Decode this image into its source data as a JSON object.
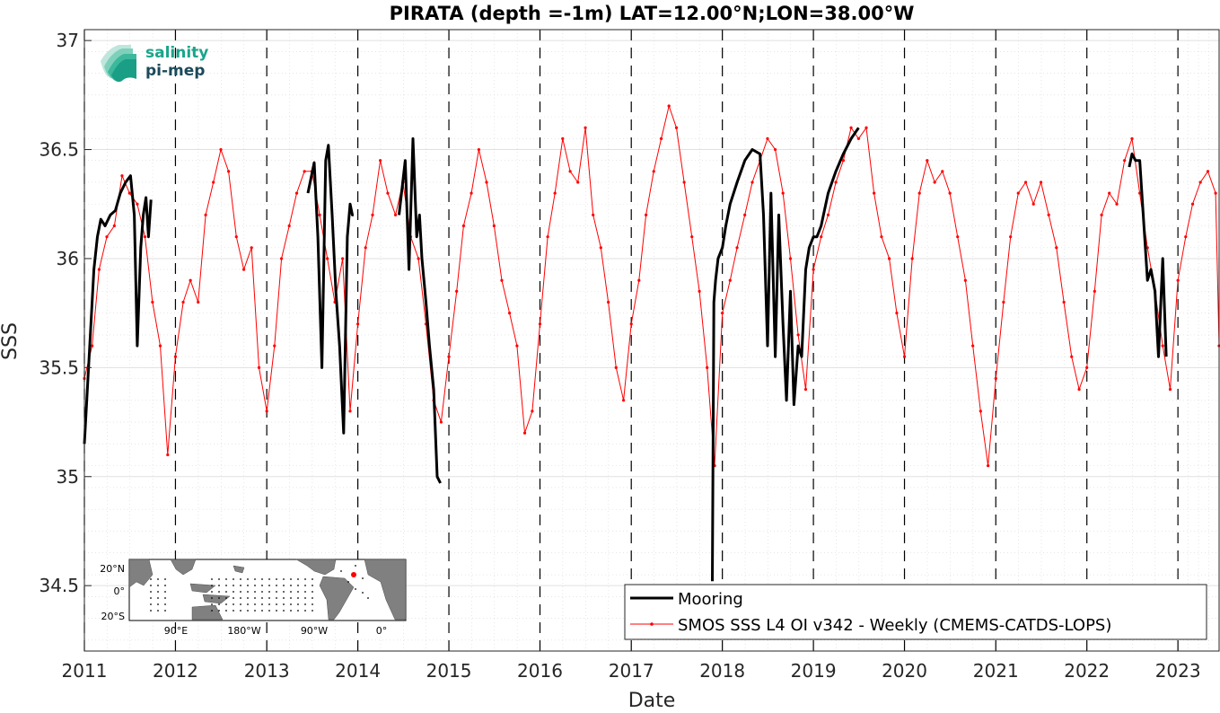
{
  "chart_data": {
    "type": "line",
    "title": "PIRATA (depth =-1m) LAT=12.00°N;LON=38.00°W",
    "xlabel": "Date",
    "ylabel": "SSS",
    "xlim": [
      "2011-01-01",
      "2023-06-15"
    ],
    "ylim": [
      34.2,
      37.05
    ],
    "xticks": [
      "2011-01-01",
      "2012-01-01",
      "2013-01-01",
      "2014-01-01",
      "2015-01-01",
      "2016-01-01",
      "2017-01-01",
      "2018-01-01",
      "2019-01-01",
      "2020-01-01",
      "2021-01-01",
      "2022-01-01",
      "2023-01-01"
    ],
    "xticklabels": [
      "2011",
      "2012",
      "2013",
      "2014",
      "2015",
      "2016",
      "2017",
      "2018",
      "2019",
      "2020",
      "2021",
      "2022",
      "2023"
    ],
    "yticks": [
      34.5,
      35,
      35.5,
      36,
      36.5,
      37
    ],
    "yticklabels": [
      "34.5",
      "35",
      "35.5",
      "36",
      "36.5",
      "37"
    ],
    "grid": true,
    "minor_grid": true,
    "year_markers": "dashed vertical lines at each year",
    "legend": {
      "placement": "bottom-right"
    },
    "series": [
      {
        "name": "Mooring",
        "color": "#000000",
        "style": "solid thick line",
        "x": [
          "2011-01-01",
          "2011-01-20",
          "2011-02-08",
          "2011-02-22",
          "2011-03-08",
          "2011-03-25",
          "2011-04-15",
          "2011-05-05",
          "2011-05-25",
          "2011-06-15",
          "2011-07-05",
          "2011-07-20",
          "2011-08-01",
          "2011-08-15",
          "2011-08-25",
          "2011-09-05",
          "2011-09-15",
          "2011-09-25",
          null,
          "2013-06-15",
          "2013-07-10",
          "2013-07-25",
          "2013-08-10",
          "2013-08-25",
          "2013-09-05",
          "2013-09-20",
          "2013-10-05",
          "2013-10-20",
          "2013-11-05",
          "2013-11-20",
          "2013-12-01",
          "2013-12-10",
          "2013-12-15",
          null,
          "2014-06-15",
          "2014-07-10",
          "2014-07-25",
          "2014-08-10",
          "2014-08-25",
          "2014-09-05",
          "2014-09-15",
          "2014-10-01",
          "2014-10-15",
          "2014-11-01",
          "2014-11-15",
          "2014-11-28",
          null,
          "2017-11-22",
          "2017-11-28",
          "2017-12-05",
          "2017-12-15",
          "2018-01-01",
          "2018-01-15",
          "2018-02-01",
          "2018-03-01",
          "2018-04-01",
          "2018-05-01",
          "2018-06-01",
          "2018-06-15",
          "2018-07-01",
          "2018-07-15",
          "2018-08-01",
          "2018-08-15",
          "2018-09-01",
          "2018-09-15",
          "2018-10-01",
          "2018-10-15",
          "2018-11-01",
          "2018-11-15",
          "2018-12-01",
          "2018-12-15",
          "2019-01-01",
          "2019-01-15",
          "2019-02-01",
          "2019-03-01",
          "2019-04-01",
          "2019-05-01",
          "2019-06-01",
          "2019-07-01",
          null,
          "2022-06-20",
          "2022-07-01",
          "2022-07-15",
          "2022-08-01",
          "2022-08-15",
          "2022-09-01",
          "2022-09-15",
          "2022-10-01",
          "2022-10-15",
          "2022-11-01",
          "2022-11-15"
        ],
        "y": [
          35.15,
          35.55,
          35.95,
          36.1,
          36.18,
          36.15,
          36.2,
          36.22,
          36.3,
          36.35,
          36.38,
          36.2,
          35.6,
          36.05,
          36.2,
          36.28,
          36.1,
          36.27,
          null,
          36.3,
          36.44,
          36.1,
          35.5,
          36.45,
          36.52,
          36.2,
          35.85,
          35.6,
          35.2,
          36.1,
          36.25,
          36.2,
          36.2,
          null,
          36.2,
          36.45,
          35.95,
          36.55,
          36.1,
          36.2,
          36.0,
          35.8,
          35.6,
          35.4,
          35.0,
          34.97,
          null,
          34.52,
          35.8,
          35.9,
          36.0,
          36.05,
          36.15,
          36.25,
          36.35,
          36.45,
          36.5,
          36.48,
          36.2,
          35.6,
          36.3,
          35.55,
          36.2,
          35.7,
          35.35,
          35.85,
          35.33,
          35.6,
          35.55,
          35.95,
          36.05,
          36.1,
          36.1,
          36.15,
          36.3,
          36.4,
          36.48,
          36.55,
          36.6,
          null,
          36.42,
          36.48,
          36.45,
          36.45,
          36.2,
          35.9,
          35.95,
          35.85,
          35.55,
          36.0,
          35.55
        ]
      },
      {
        "name": "SMOS SSS L4 OI v342 - Weekly (CMEMS-CATDS-LOPS)",
        "color": "#ff0000",
        "style": "thin line with point markers",
        "x": [
          "2011-01-01",
          "2011-02-01",
          "2011-03-01",
          "2011-04-01",
          "2011-05-01",
          "2011-06-01",
          "2011-07-01",
          "2011-08-01",
          "2011-09-01",
          "2011-10-01",
          "2011-11-01",
          "2011-12-01",
          "2012-01-01",
          "2012-02-01",
          "2012-03-01",
          "2012-04-01",
          "2012-05-01",
          "2012-06-01",
          "2012-07-01",
          "2012-08-01",
          "2012-09-01",
          "2012-10-01",
          "2012-11-01",
          "2012-12-01",
          "2013-01-01",
          "2013-02-01",
          "2013-03-01",
          "2013-04-01",
          "2013-05-01",
          "2013-06-01",
          "2013-07-01",
          "2013-08-01",
          "2013-09-01",
          "2013-10-01",
          "2013-11-01",
          "2013-12-01",
          "2014-01-01",
          "2014-02-01",
          "2014-03-01",
          "2014-04-01",
          "2014-05-01",
          "2014-06-01",
          "2014-07-01",
          "2014-08-01",
          "2014-09-01",
          "2014-10-01",
          "2014-11-01",
          "2014-12-01",
          "2015-01-01",
          "2015-02-01",
          "2015-03-01",
          "2015-04-01",
          "2015-05-01",
          "2015-06-01",
          "2015-07-01",
          "2015-08-01",
          "2015-09-01",
          "2015-10-01",
          "2015-11-01",
          "2015-12-01",
          "2016-01-01",
          "2016-02-01",
          "2016-03-01",
          "2016-04-01",
          "2016-05-01",
          "2016-06-01",
          "2016-07-01",
          "2016-08-01",
          "2016-09-01",
          "2016-10-01",
          "2016-11-01",
          "2016-12-01",
          "2017-01-01",
          "2017-02-01",
          "2017-03-01",
          "2017-04-01",
          "2017-05-01",
          "2017-06-01",
          "2017-07-01",
          "2017-08-01",
          "2017-09-01",
          "2017-10-01",
          "2017-11-01",
          "2017-12-01",
          "2018-01-01",
          "2018-02-01",
          "2018-03-01",
          "2018-04-01",
          "2018-05-01",
          "2018-06-01",
          "2018-07-01",
          "2018-08-01",
          "2018-09-01",
          "2018-10-01",
          "2018-11-01",
          "2018-12-01",
          "2019-01-01",
          "2019-02-01",
          "2019-03-01",
          "2019-04-01",
          "2019-05-01",
          "2019-06-01",
          "2019-07-01",
          "2019-08-01",
          "2019-09-01",
          "2019-10-01",
          "2019-11-01",
          "2019-12-01",
          "2020-01-01",
          "2020-02-01",
          "2020-03-01",
          "2020-04-01",
          "2020-05-01",
          "2020-06-01",
          "2020-07-01",
          "2020-08-01",
          "2020-09-01",
          "2020-10-01",
          "2020-11-01",
          "2020-12-01",
          "2021-01-01",
          "2021-02-01",
          "2021-03-01",
          "2021-04-01",
          "2021-05-01",
          "2021-06-01",
          "2021-07-01",
          "2021-08-01",
          "2021-09-01",
          "2021-10-01",
          "2021-11-01",
          "2021-12-01",
          "2022-01-01",
          "2022-02-01",
          "2022-03-01",
          "2022-04-01",
          "2022-05-01",
          "2022-06-01",
          "2022-07-01",
          "2022-08-01",
          "2022-09-01",
          "2022-10-01",
          "2022-11-01",
          "2022-12-01",
          "2023-01-01",
          "2023-02-01",
          "2023-03-01",
          "2023-04-01",
          "2023-05-01",
          "2023-06-01",
          "2023-06-15"
        ],
        "y": [
          35.45,
          35.6,
          35.95,
          36.1,
          36.15,
          36.38,
          36.3,
          36.25,
          36.1,
          35.8,
          35.6,
          35.1,
          35.55,
          35.8,
          35.9,
          35.8,
          36.2,
          36.35,
          36.5,
          36.4,
          36.1,
          35.95,
          36.05,
          35.5,
          35.3,
          35.6,
          36.0,
          36.15,
          36.3,
          36.4,
          36.4,
          36.2,
          36.0,
          35.8,
          36.0,
          35.3,
          35.7,
          36.05,
          36.2,
          36.45,
          36.3,
          36.2,
          36.35,
          36.1,
          36.0,
          35.7,
          35.35,
          35.25,
          35.55,
          35.85,
          36.15,
          36.3,
          36.5,
          36.35,
          36.15,
          35.9,
          35.75,
          35.6,
          35.2,
          35.3,
          35.7,
          36.1,
          36.3,
          36.55,
          36.4,
          36.35,
          36.6,
          36.2,
          36.05,
          35.8,
          35.5,
          35.35,
          35.7,
          35.9,
          36.2,
          36.4,
          36.55,
          36.7,
          36.6,
          36.35,
          36.1,
          35.85,
          35.5,
          35.05,
          35.75,
          35.9,
          36.05,
          36.2,
          36.35,
          36.45,
          36.55,
          36.5,
          36.3,
          36.0,
          35.65,
          35.4,
          35.95,
          36.1,
          36.2,
          36.35,
          36.45,
          36.6,
          36.55,
          36.6,
          36.3,
          36.1,
          36.0,
          35.75,
          35.55,
          36.0,
          36.3,
          36.45,
          36.35,
          36.4,
          36.3,
          36.1,
          35.9,
          35.6,
          35.3,
          35.05,
          35.45,
          35.8,
          36.1,
          36.3,
          36.35,
          36.25,
          36.35,
          36.2,
          36.05,
          35.8,
          35.55,
          35.4,
          35.5,
          35.85,
          36.2,
          36.3,
          36.25,
          36.45,
          36.55,
          36.3,
          36.05,
          35.85,
          35.6,
          35.4,
          35.9,
          36.1,
          36.25,
          36.35,
          36.4,
          36.3,
          35.6
        ]
      }
    ]
  },
  "logo": {
    "line1": "salinity",
    "line2": "pi-mep"
  },
  "inset_map": {
    "ytick_labels": [
      "20°N",
      "0°",
      "20°S"
    ],
    "xtick_labels": [
      "90°E",
      "180°W",
      "90°W",
      "0°"
    ],
    "land_color": "#808080",
    "ocean_color": "#ffffff",
    "marker_color": "#ff0000"
  }
}
